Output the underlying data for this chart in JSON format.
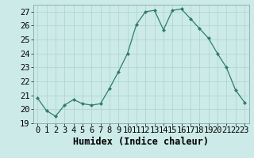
{
  "x": [
    0,
    1,
    2,
    3,
    4,
    5,
    6,
    7,
    8,
    9,
    10,
    11,
    12,
    13,
    14,
    15,
    16,
    17,
    18,
    19,
    20,
    21,
    22,
    23
  ],
  "y": [
    20.8,
    19.9,
    19.5,
    20.3,
    20.7,
    20.4,
    20.3,
    20.4,
    21.5,
    22.7,
    24.0,
    26.1,
    27.0,
    27.1,
    25.7,
    27.1,
    27.2,
    26.5,
    25.8,
    25.1,
    24.0,
    23.0,
    21.4,
    20.5
  ],
  "line_color": "#2e7d6e",
  "marker": "D",
  "marker_size": 2.0,
  "bg_color": "#cceae7",
  "grid_color": "#aad4d0",
  "xlabel": "Humidex (Indice chaleur)",
  "ylim": [
    19,
    27.5
  ],
  "yticks": [
    19,
    20,
    21,
    22,
    23,
    24,
    25,
    26,
    27
  ],
  "xticks": [
    0,
    1,
    2,
    3,
    4,
    5,
    6,
    7,
    8,
    9,
    10,
    11,
    12,
    13,
    14,
    15,
    16,
    17,
    18,
    19,
    20,
    21,
    22,
    23
  ],
  "tick_fontsize": 7.5,
  "xlabel_fontsize": 8.5
}
